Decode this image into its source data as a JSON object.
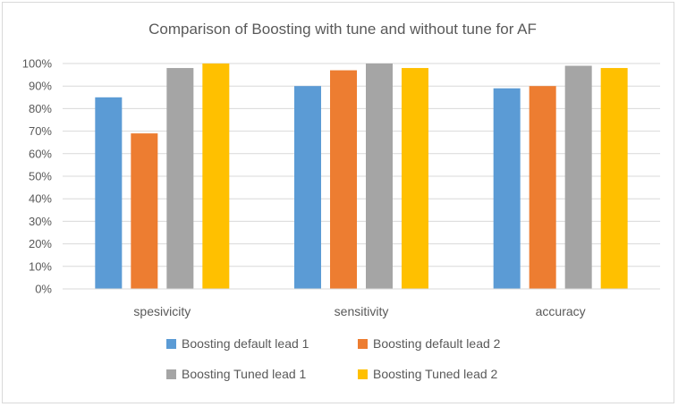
{
  "chart_data": {
    "type": "bar",
    "title": "Comparison of Boosting with tune and without tune for AF",
    "categories": [
      "spesivicity",
      "sensitivity",
      "accuracy"
    ],
    "series": [
      {
        "name": "Boosting default lead 1",
        "color": "#5b9bd5",
        "values": [
          85,
          90,
          89
        ]
      },
      {
        "name": "Boosting default lead 2",
        "color": "#ed7d31",
        "values": [
          69,
          97,
          90
        ]
      },
      {
        "name": "Boosting Tuned lead 1",
        "color": "#a5a5a5",
        "values": [
          98,
          100,
          99
        ]
      },
      {
        "name": "Boosting Tuned lead 2",
        "color": "#ffc000",
        "values": [
          100,
          98,
          98
        ]
      }
    ],
    "ylim": [
      0,
      100
    ],
    "yticks": [
      "0%",
      "10%",
      "20%",
      "30%",
      "40%",
      "50%",
      "60%",
      "70%",
      "80%",
      "90%",
      "100%"
    ],
    "grid": true,
    "legend_position": "bottom"
  }
}
